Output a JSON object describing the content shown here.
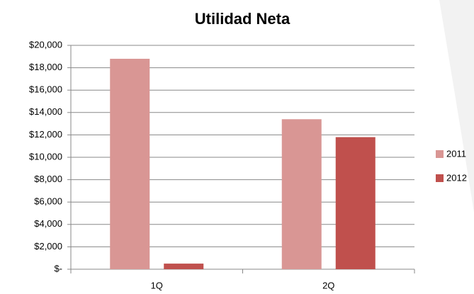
{
  "chart_data": {
    "type": "bar",
    "title": "Utilidad Neta",
    "categories": [
      "1Q",
      "2Q"
    ],
    "series": [
      {
        "name": "2011",
        "color": "#d99694",
        "values": [
          18800,
          13400
        ]
      },
      {
        "name": "2012",
        "color": "#c0504d",
        "values": [
          500,
          11800
        ]
      }
    ],
    "ylim": [
      0,
      20000
    ],
    "yticks": [
      {
        "value": 0,
        "label": "$-"
      },
      {
        "value": 2000,
        "label": "$2,000"
      },
      {
        "value": 4000,
        "label": "$4,000"
      },
      {
        "value": 6000,
        "label": "$6,000"
      },
      {
        "value": 8000,
        "label": "$8,000"
      },
      {
        "value": 10000,
        "label": "$10,000"
      },
      {
        "value": 12000,
        "label": "$12,000"
      },
      {
        "value": 14000,
        "label": "$14,000"
      },
      {
        "value": 16000,
        "label": "$16,000"
      },
      {
        "value": 18000,
        "label": "$18,000"
      },
      {
        "value": 20000,
        "label": "$20,000"
      }
    ],
    "grid": true,
    "legend": "right"
  }
}
